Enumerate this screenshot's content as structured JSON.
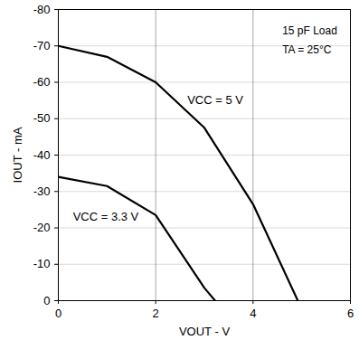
{
  "chart_data": {
    "type": "line",
    "x_label": "VOUT - V",
    "y_label": "IOUT - mA",
    "xlim": [
      0,
      6
    ],
    "xticks": [
      0,
      2,
      4,
      6
    ],
    "ylim": [
      0,
      -80
    ],
    "yticks": [
      -80,
      -70,
      -60,
      -50,
      -40,
      -30,
      -20,
      -10,
      0
    ],
    "grid": true,
    "annotations": [
      "15 pF Load",
      "TA = 25°C"
    ],
    "series": [
      {
        "name": "VCC = 5 V",
        "color": "#000000",
        "x": [
          0,
          1,
          2,
          3,
          4,
          4.92
        ],
        "values": [
          -70,
          -67,
          -60,
          -47.5,
          -26.5,
          0
        ]
      },
      {
        "name": "VCC = 3.3 V",
        "color": "#000000",
        "x": [
          0,
          1,
          2,
          3,
          3.22
        ],
        "values": [
          -34,
          -31.5,
          -23.5,
          -3.5,
          0
        ]
      }
    ]
  }
}
